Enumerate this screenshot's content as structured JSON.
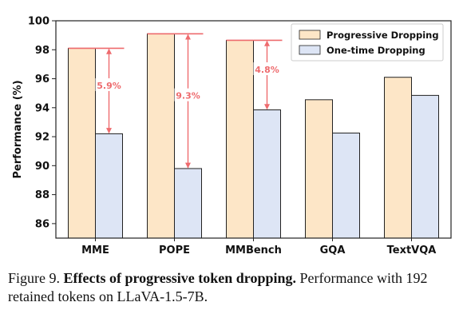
{
  "chart_data": {
    "type": "bar",
    "categories": [
      "MME",
      "POPE",
      "MMBench",
      "GQA",
      "TextVQA"
    ],
    "series": [
      {
        "name": "Progressive Dropping",
        "values": [
          98.1,
          99.1,
          98.65,
          94.55,
          96.1
        ],
        "color": "#fde6c7"
      },
      {
        "name": "One-time Dropping",
        "values": [
          92.2,
          89.8,
          93.85,
          92.25,
          94.85
        ],
        "color": "#dde5f5"
      }
    ],
    "ylabel": "Performance (%)",
    "xlabel": "",
    "ylim": [
      85,
      100
    ],
    "yticks": [
      86,
      88,
      90,
      92,
      94,
      96,
      98,
      100
    ],
    "legend_position": "top-right",
    "grid": false,
    "annotations": [
      {
        "category": "MME",
        "text": "5.9%"
      },
      {
        "category": "POPE",
        "text": "9.3%"
      },
      {
        "category": "MMBench",
        "text": "4.8%"
      }
    ],
    "annotation_color": "#ee6b6e"
  },
  "caption": {
    "label": "Figure 9.",
    "title": "Effects of progressive token dropping.",
    "text": "Performance with 192 retained tokens on LLaVA-1.5-7B."
  }
}
